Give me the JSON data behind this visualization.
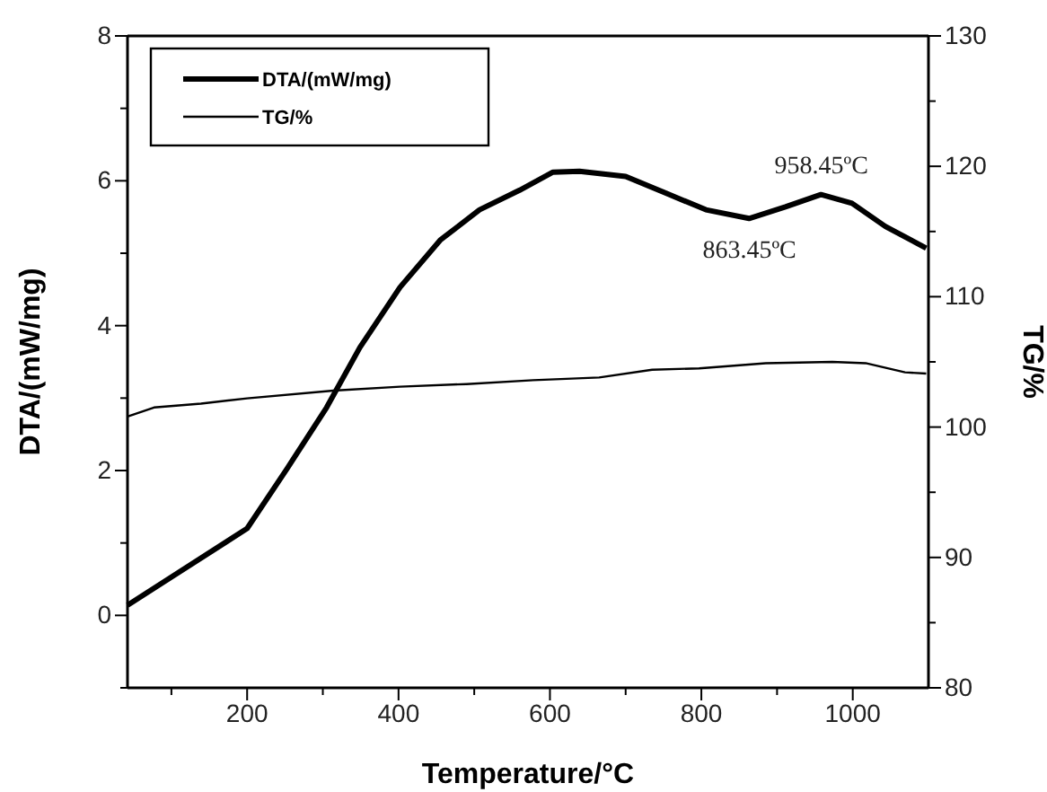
{
  "chart_data": {
    "type": "line",
    "xlabel": "Temperature/°C",
    "ylabel": "DTA/(mW/mg)",
    "y2label": "TG/%",
    "xlim": [
      42,
      1100
    ],
    "xticks": [
      {
        "value": 100,
        "label": null
      },
      200,
      {
        "value": 300,
        "label": null
      },
      400,
      {
        "value": 500,
        "label": null
      },
      600,
      {
        "value": 700,
        "label": null
      },
      800,
      {
        "value": 900,
        "label": null
      },
      1000
    ],
    "ylim": [
      -1,
      8
    ],
    "yticks": [
      {
        "value": -1,
        "label": null
      },
      0,
      {
        "value": 1,
        "label": null
      },
      2,
      {
        "value": 3,
        "label": null
      },
      4,
      {
        "value": 5,
        "label": null
      },
      6,
      {
        "value": 7,
        "label": null
      },
      8
    ],
    "y2lim": [
      80,
      130
    ],
    "y2ticks": [
      80,
      {
        "value": 85,
        "label": null
      },
      90,
      {
        "value": 95,
        "label": null
      },
      100,
      {
        "value": 105,
        "label": null
      },
      110,
      {
        "value": 115,
        "label": null
      },
      120,
      {
        "value": 125,
        "label": null
      },
      130
    ],
    "legend": "top left",
    "grid": false,
    "line_style": "solid",
    "series": [
      {
        "name": "DTA/(mW/mg)",
        "color": "#000000",
        "x": [
          42,
          103,
          200,
          253,
          305,
          349,
          402,
          455,
          507,
          560,
          604,
          639,
          700,
          753,
          806,
          863,
          911,
          958,
          999,
          1043,
          1097
        ],
        "values": [
          0.14,
          0.55,
          1.2,
          2.03,
          2.87,
          3.7,
          4.53,
          5.18,
          5.6,
          5.87,
          6.12,
          6.13,
          6.06,
          5.83,
          5.6,
          5.48,
          5.64,
          5.81,
          5.69,
          5.37,
          5.07
        ]
      },
      {
        "name": "TG/%",
        "color": "#000000",
        "axis": "y2",
        "x": [
          42,
          77,
          139,
          200,
          314,
          402,
          490,
          578,
          665,
          735,
          797,
          885,
          973,
          1017,
          1069,
          1097
        ],
        "values": [
          100.8,
          101.5,
          101.8,
          102.2,
          102.8,
          103.1,
          103.3,
          103.6,
          103.8,
          104.4,
          104.5,
          104.9,
          105,
          104.9,
          104.2,
          104.1
        ]
      }
    ],
    "annotations": [
      {
        "text": "958.45ºC",
        "x": 958.45,
        "y": 5.81
      },
      {
        "text": "863.45ºC",
        "x": 863.45,
        "y": 5.48
      }
    ]
  }
}
